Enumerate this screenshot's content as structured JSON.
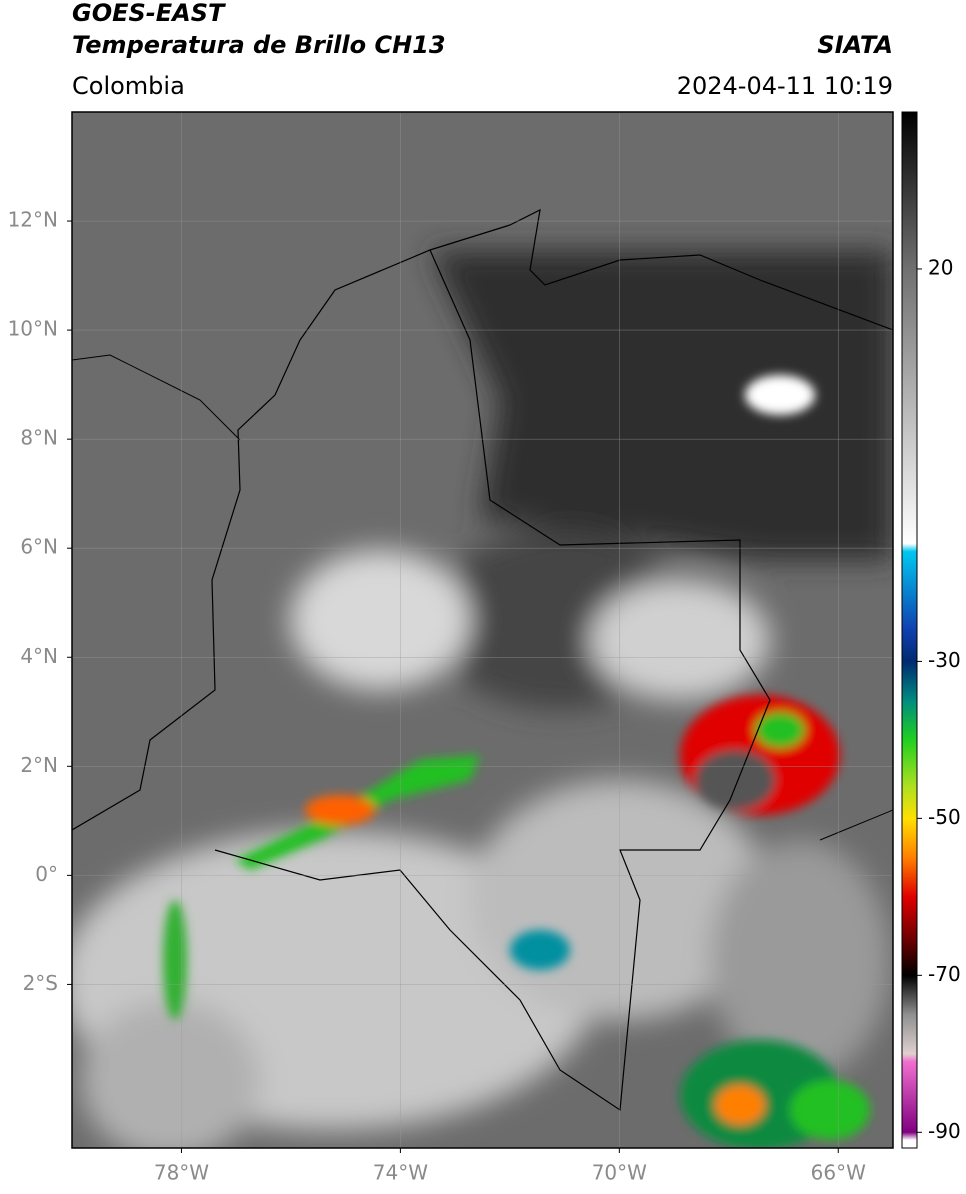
{
  "header": {
    "title": "GOES-EAST",
    "subtitle": "Temperatura de Brillo CH13",
    "source": "SIATA",
    "region": "Colombia",
    "datetime": "2024-04-11 10:19"
  },
  "map": {
    "lonlim": [
      -80,
      -65
    ],
    "latlim": [
      -5,
      14
    ],
    "lon_ticks": [
      {
        "value": -78,
        "label": "78°W"
      },
      {
        "value": -74,
        "label": "74°W"
      },
      {
        "value": -70,
        "label": "70°W"
      },
      {
        "value": -66,
        "label": "66°W"
      }
    ],
    "lat_ticks": [
      {
        "value": 12,
        "label": "12°N"
      },
      {
        "value": 10,
        "label": "10°N"
      },
      {
        "value": 8,
        "label": "8°N"
      },
      {
        "value": 6,
        "label": "6°N"
      },
      {
        "value": 4,
        "label": "4°N"
      },
      {
        "value": 2,
        "label": "2°N"
      },
      {
        "value": 0,
        "label": "0°"
      },
      {
        "value": -2,
        "label": "2°S"
      }
    ],
    "grid": true
  },
  "colorbar": {
    "lim": [
      -92,
      40
    ],
    "ticks": [
      20,
      -30,
      -50,
      -70,
      -90
    ],
    "colormap": [
      {
        "value": 40,
        "color": "#000000"
      },
      {
        "value": 20,
        "color": "#707070"
      },
      {
        "value": -15,
        "color": "#ffffff"
      },
      {
        "value": -16,
        "color": "#00c8f0"
      },
      {
        "value": -26,
        "color": "#1040b0"
      },
      {
        "value": -30,
        "color": "#002a70"
      },
      {
        "value": -35,
        "color": "#008c80"
      },
      {
        "value": -40,
        "color": "#20d020"
      },
      {
        "value": -46,
        "color": "#b0e020"
      },
      {
        "value": -50,
        "color": "#ffe000"
      },
      {
        "value": -55,
        "color": "#ff8000"
      },
      {
        "value": -60,
        "color": "#e00000"
      },
      {
        "value": -66,
        "color": "#600000"
      },
      {
        "value": -70,
        "color": "#000000"
      },
      {
        "value": -75,
        "color": "#909090"
      },
      {
        "value": -80,
        "color": "#e0d0d0"
      },
      {
        "value": -81,
        "color": "#f070d0"
      },
      {
        "value": -90,
        "color": "#800080"
      },
      {
        "value": -91,
        "color": "#ffffff"
      }
    ]
  }
}
